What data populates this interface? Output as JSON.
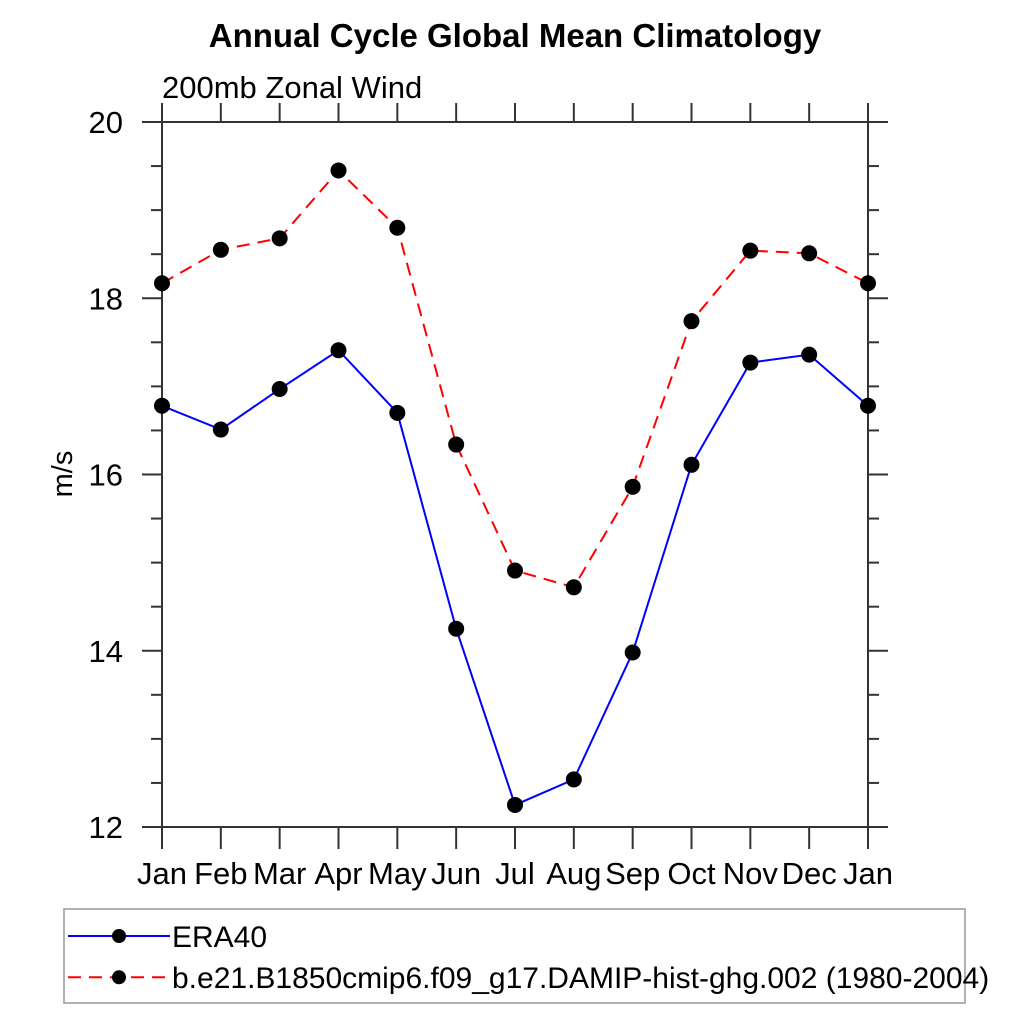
{
  "chart_data": {
    "type": "line",
    "title": "Annual Cycle Global Mean Climatology",
    "subtitle": "200mb Zonal Wind",
    "ylabel": "m/s",
    "xlabel": "",
    "categories": [
      "Jan",
      "Feb",
      "Mar",
      "Apr",
      "May",
      "Jun",
      "Jul",
      "Aug",
      "Sep",
      "Oct",
      "Nov",
      "Dec",
      "Jan"
    ],
    "ylim": [
      12,
      20
    ],
    "ytick_major": [
      12,
      14,
      16,
      18,
      20
    ],
    "ytick_minor_step": 0.5,
    "grid": false,
    "legend_position": "bottom-left-box",
    "axis_color": "#333333",
    "marker_color": "#000000",
    "series": [
      {
        "name": "ERA40",
        "color": "#0000ff",
        "line_style": "solid",
        "marker": "filled-circle",
        "values": [
          16.78,
          16.51,
          16.97,
          17.41,
          16.7,
          14.25,
          12.25,
          12.54,
          13.98,
          16.11,
          17.27,
          17.36,
          16.78
        ]
      },
      {
        "name": "b.e21.B1850cmip6.f09_g17.DAMIP-hist-ghg.002 (1980-2004)",
        "color": "#ff0000",
        "line_style": "dashed",
        "marker": "filled-circle",
        "values": [
          18.17,
          18.55,
          18.68,
          19.45,
          18.8,
          16.34,
          14.91,
          14.72,
          15.86,
          17.74,
          18.54,
          18.51,
          18.17
        ]
      }
    ]
  }
}
